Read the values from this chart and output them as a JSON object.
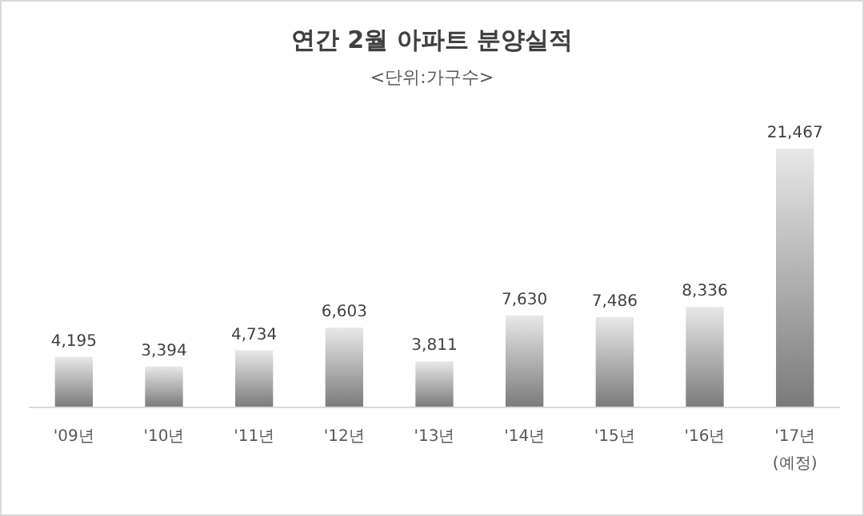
{
  "chart_data": {
    "type": "bar",
    "title": "연간 2월 아파트 분양실적",
    "subtitle": "<단위:가구수>",
    "categories": [
      "'09년",
      "'10년",
      "'11년",
      "'12년",
      "'13년",
      "'14년",
      "'15년",
      "'16년",
      "'17년\n(예정)"
    ],
    "values": [
      4195,
      3394,
      4734,
      6603,
      3811,
      7630,
      7486,
      8336,
      21467
    ],
    "value_labels": [
      "4,195",
      "3,394",
      "4,734",
      "6,603",
      "3,811",
      "7,630",
      "7,486",
      "8,336",
      "21,467"
    ],
    "color": "#7a7a7a"
  }
}
